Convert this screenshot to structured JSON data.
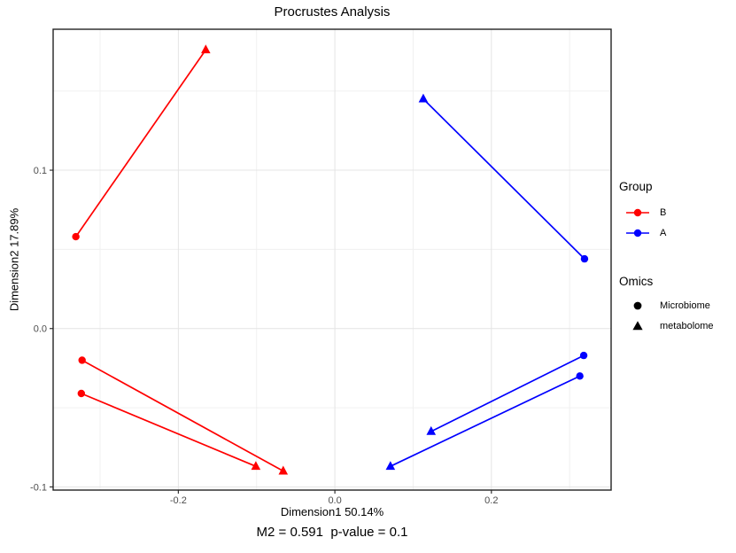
{
  "title": "Procrustes Analysis",
  "chart_data": {
    "type": "scatter",
    "title": "Procrustes Analysis",
    "xlabel": "Dimension1 50.14%",
    "ylabel": "Dimension2 17.89%",
    "caption": "M2 = 0.591  p-value = 0.1",
    "grid": true,
    "legend_position": "right",
    "xlim": [
      -0.36,
      0.353
    ],
    "ylim": [
      -0.102,
      0.189
    ],
    "xticks": [
      {
        "value": -0.2,
        "label": "-0.2"
      },
      {
        "value": 0.0,
        "label": "0.0"
      },
      {
        "value": 0.2,
        "label": "0.2"
      }
    ],
    "yticks": [
      {
        "value": -0.1,
        "label": "-0.1"
      },
      {
        "value": 0.0,
        "label": "0.0"
      },
      {
        "value": 0.1,
        "label": "0.1"
      }
    ],
    "minor_xticks": [
      -0.3,
      -0.1,
      0.1,
      0.3
    ],
    "minor_yticks": [
      -0.05,
      0.05,
      0.15
    ],
    "colors": {
      "B": "#FF0000",
      "A": "#0000FF"
    },
    "pairs": [
      {
        "group": "B",
        "microbiome": [
          -0.331,
          0.058
        ],
        "metabolome": [
          -0.165,
          0.176
        ]
      },
      {
        "group": "B",
        "microbiome": [
          -0.323,
          -0.02
        ],
        "metabolome": [
          -0.066,
          -0.09
        ]
      },
      {
        "group": "B",
        "microbiome": [
          -0.324,
          -0.041
        ],
        "metabolome": [
          -0.101,
          -0.087
        ]
      },
      {
        "group": "A",
        "microbiome": [
          0.319,
          0.044
        ],
        "metabolome": [
          0.113,
          0.145
        ]
      },
      {
        "group": "A",
        "microbiome": [
          0.318,
          -0.017
        ],
        "metabolome": [
          0.123,
          -0.065
        ]
      },
      {
        "group": "A",
        "microbiome": [
          0.313,
          -0.03
        ],
        "metabolome": [
          0.071,
          -0.087
        ]
      }
    ],
    "legend": {
      "group_title": "Group",
      "group_items": [
        {
          "label": "B",
          "color": "#FF0000"
        },
        {
          "label": "A",
          "color": "#0000FF"
        }
      ],
      "omics_title": "Omics",
      "omics_items": [
        {
          "label": "Microbiome",
          "shape": "circle"
        },
        {
          "label": "metabolome",
          "shape": "triangle"
        }
      ]
    }
  }
}
